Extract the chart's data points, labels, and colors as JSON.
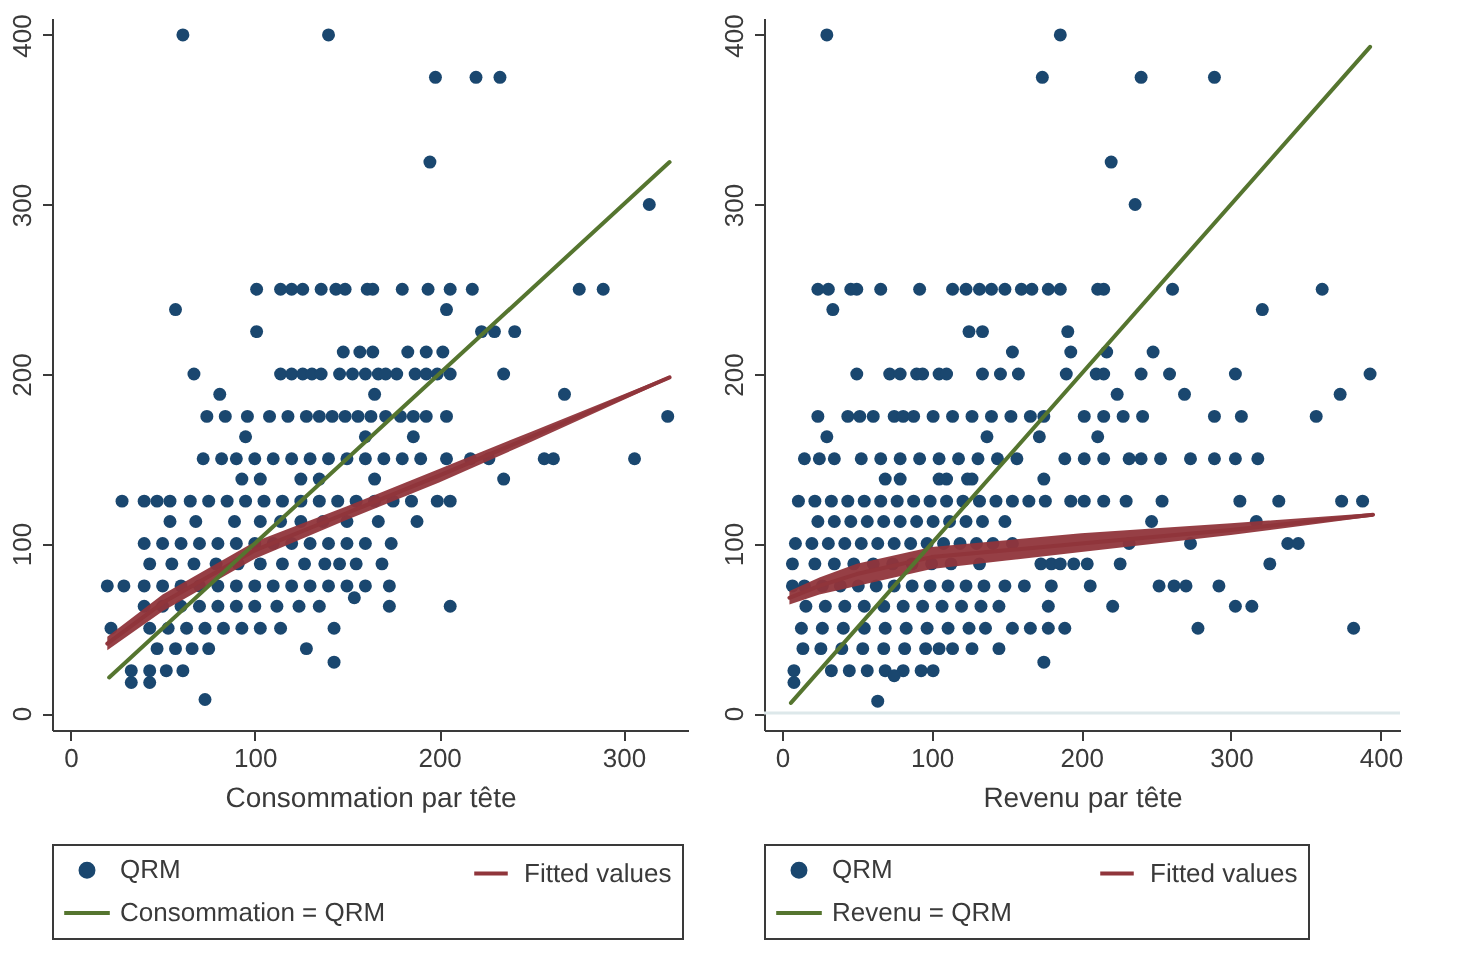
{
  "chart_data": [
    {
      "type": "scatter",
      "xlabel": "Consommation par tête",
      "xlim": [
        -10,
        335
      ],
      "ylim": [
        -10,
        410
      ],
      "xticks": [
        0,
        100,
        200,
        300
      ],
      "yticks": [
        0,
        100,
        200,
        300,
        400
      ],
      "legend": "bottom",
      "series": [
        {
          "name": "QRM",
          "marker": "circle",
          "color": "#1a476f",
          "x": [
            61,
            140,
            198,
            220,
            233,
            195,
            314,
            101,
            114,
            120,
            126,
            136,
            144,
            149,
            161,
            164,
            180,
            194,
            206,
            218,
            276,
            289,
            57,
            204,
            101,
            223,
            230,
            241,
            148,
            157,
            164,
            183,
            193,
            202,
            67,
            114,
            120,
            126,
            131,
            136,
            146,
            153,
            160,
            167,
            171,
            177,
            187,
            193,
            199,
            206,
            235,
            81,
            165,
            268,
            74,
            84,
            96,
            108,
            118,
            128,
            135,
            142,
            149,
            156,
            163,
            171,
            179,
            186,
            193,
            204,
            324,
            95,
            160,
            186,
            72,
            82,
            90,
            100,
            110,
            120,
            130,
            140,
            150,
            160,
            170,
            180,
            190,
            204,
            217,
            227,
            257,
            262,
            306,
            93,
            103,
            125,
            135,
            165,
            235,
            28,
            40,
            47,
            54,
            65,
            75,
            85,
            95,
            105,
            115,
            125,
            135,
            145,
            155,
            165,
            175,
            185,
            199,
            206,
            54,
            68,
            89,
            103,
            114,
            125,
            137,
            150,
            167,
            188,
            40,
            50,
            60,
            70,
            80,
            90,
            100,
            110,
            120,
            130,
            140,
            150,
            160,
            174,
            43,
            55,
            67,
            79,
            91,
            103,
            115,
            127,
            138,
            146,
            155,
            169,
            20,
            29,
            40,
            50,
            60,
            70,
            80,
            90,
            100,
            110,
            120,
            130,
            140,
            150,
            160,
            173,
            40,
            50,
            60,
            70,
            80,
            90,
            100,
            112,
            124,
            135,
            173,
            206,
            22,
            43,
            53,
            63,
            73,
            83,
            93,
            103,
            114,
            143,
            47,
            57,
            66,
            75,
            128,
            143,
            33,
            43,
            52,
            61,
            33,
            43,
            73,
            154
          ],
          "values": [
            400,
            400,
            375,
            375,
            375,
            325,
            300,
            250,
            250,
            250,
            250,
            250,
            250,
            250,
            250,
            250,
            250,
            250,
            250,
            250,
            250,
            250,
            238,
            238,
            225,
            225,
            225,
            225,
            213,
            213,
            213,
            213,
            213,
            213,
            200,
            200,
            200,
            200,
            200,
            200,
            200,
            200,
            200,
            200,
            200,
            200,
            200,
            200,
            200,
            200,
            200,
            188,
            188,
            188,
            175,
            175,
            175,
            175,
            175,
            175,
            175,
            175,
            175,
            175,
            175,
            175,
            175,
            175,
            175,
            175,
            175,
            163,
            163,
            163,
            150,
            150,
            150,
            150,
            150,
            150,
            150,
            150,
            150,
            150,
            150,
            150,
            150,
            150,
            150,
            150,
            150,
            150,
            150,
            138,
            138,
            138,
            138,
            138,
            138,
            125,
            125,
            125,
            125,
            125,
            125,
            125,
            125,
            125,
            125,
            125,
            125,
            125,
            125,
            125,
            125,
            125,
            125,
            125,
            113,
            113,
            113,
            113,
            113,
            113,
            113,
            113,
            113,
            113,
            100,
            100,
            100,
            100,
            100,
            100,
            100,
            100,
            100,
            100,
            100,
            100,
            100,
            100,
            88,
            88,
            88,
            88,
            88,
            88,
            88,
            88,
            88,
            88,
            88,
            88,
            75,
            75,
            75,
            75,
            75,
            75,
            75,
            75,
            75,
            75,
            75,
            75,
            75,
            75,
            75,
            75,
            63,
            63,
            63,
            63,
            63,
            63,
            63,
            63,
            63,
            63,
            63,
            63,
            50,
            50,
            50,
            50,
            50,
            50,
            50,
            50,
            50,
            50,
            38,
            38,
            38,
            38,
            38,
            30,
            25,
            25,
            25,
            25,
            18,
            18,
            8,
            68
          ]
        },
        {
          "name": "Fitted values",
          "type": "line",
          "color": "#90353b",
          "x": [
            20,
            50,
            100,
            150,
            200,
            250,
            325
          ],
          "values": [
            41,
            65,
            96,
            118,
            140,
            163,
            198
          ],
          "lower": [
            37,
            60,
            91,
            114,
            136,
            160,
            197
          ],
          "upper": [
            45,
            70,
            101,
            122,
            144,
            166,
            199
          ]
        },
        {
          "name": "Consommation = QRM",
          "type": "line",
          "color": "#55752f",
          "x": [
            21,
            325
          ],
          "values": [
            21,
            325
          ]
        }
      ]
    },
    {
      "type": "scatter",
      "xlabel": "Revenu par tête",
      "xlim": [
        -12,
        413
      ],
      "ylim": [
        -10,
        410
      ],
      "xticks": [
        0,
        100,
        200,
        300,
        400
      ],
      "yticks": [
        0,
        100,
        200,
        300,
        400
      ],
      "legend": "bottom",
      "ref_lines": [
        {
          "axis": "y",
          "value": 0,
          "color": "#dde8ea"
        }
      ],
      "series": [
        {
          "name": "QRM",
          "marker": "circle",
          "color": "#1a476f",
          "x": [
            30,
            186,
            174,
            240,
            289,
            220,
            236,
            24,
            31,
            46,
            50,
            66,
            92,
            114,
            123,
            132,
            140,
            149,
            160,
            167,
            178,
            186,
            211,
            215,
            261,
            361,
            34,
            321,
            125,
            134,
            191,
            154,
            193,
            217,
            248,
            50,
            72,
            79,
            90,
            94,
            105,
            110,
            134,
            146,
            158,
            190,
            210,
            215,
            240,
            259,
            303,
            393,
            224,
            269,
            373,
            24,
            44,
            52,
            61,
            75,
            81,
            88,
            101,
            114,
            127,
            140,
            153,
            166,
            175,
            202,
            215,
            228,
            241,
            289,
            307,
            357,
            30,
            137,
            172,
            211,
            15,
            25,
            35,
            53,
            66,
            79,
            92,
            105,
            118,
            131,
            144,
            157,
            189,
            202,
            215,
            232,
            240,
            253,
            273,
            289,
            303,
            318,
            69,
            79,
            105,
            110,
            124,
            127,
            175,
            11,
            22,
            33,
            44,
            55,
            66,
            77,
            88,
            99,
            110,
            121,
            132,
            143,
            154,
            165,
            176,
            193,
            202,
            215,
            230,
            254,
            306,
            332,
            374,
            388,
            24,
            35,
            46,
            57,
            68,
            79,
            90,
            101,
            112,
            123,
            134,
            149,
            247,
            317,
            9,
            20,
            31,
            42,
            53,
            64,
            75,
            86,
            97,
            108,
            119,
            130,
            141,
            154,
            232,
            273,
            338,
            345,
            7,
            22,
            35,
            48,
            61,
            74,
            87,
            100,
            113,
            132,
            173,
            180,
            186,
            195,
            204,
            226,
            326,
            7,
            15,
            27,
            39,
            51,
            63,
            75,
            87,
            99,
            111,
            123,
            135,
            149,
            162,
            180,
            206,
            252,
            262,
            270,
            292,
            16,
            29,
            42,
            55,
            68,
            81,
            94,
            107,
            120,
            133,
            145,
            178,
            221,
            303,
            314,
            13,
            27,
            41,
            55,
            69,
            83,
            97,
            111,
            125,
            136,
            154,
            166,
            178,
            189,
            278,
            382,
            14,
            26,
            40,
            54,
            68,
            82,
            96,
            105,
            114,
            127,
            145,
            175,
            8,
            33,
            45,
            57,
            69,
            81,
            93,
            101,
            75,
            8,
            64
          ],
          "values": [
            400,
            400,
            375,
            375,
            375,
            325,
            300,
            250,
            250,
            250,
            250,
            250,
            250,
            250,
            250,
            250,
            250,
            250,
            250,
            250,
            250,
            250,
            250,
            250,
            250,
            250,
            238,
            238,
            225,
            225,
            225,
            213,
            213,
            213,
            213,
            200,
            200,
            200,
            200,
            200,
            200,
            200,
            200,
            200,
            200,
            200,
            200,
            200,
            200,
            200,
            200,
            200,
            188,
            188,
            188,
            175,
            175,
            175,
            175,
            175,
            175,
            175,
            175,
            175,
            175,
            175,
            175,
            175,
            175,
            175,
            175,
            175,
            175,
            175,
            175,
            175,
            163,
            163,
            163,
            163,
            150,
            150,
            150,
            150,
            150,
            150,
            150,
            150,
            150,
            150,
            150,
            150,
            150,
            150,
            150,
            150,
            150,
            150,
            150,
            150,
            150,
            150,
            138,
            138,
            138,
            138,
            138,
            138,
            138,
            125,
            125,
            125,
            125,
            125,
            125,
            125,
            125,
            125,
            125,
            125,
            125,
            125,
            125,
            125,
            125,
            125,
            125,
            125,
            125,
            125,
            125,
            125,
            125,
            125,
            113,
            113,
            113,
            113,
            113,
            113,
            113,
            113,
            113,
            113,
            113,
            113,
            113,
            113,
            100,
            100,
            100,
            100,
            100,
            100,
            100,
            100,
            100,
            100,
            100,
            100,
            100,
            100,
            100,
            100,
            100,
            100,
            88,
            88,
            88,
            88,
            88,
            88,
            88,
            88,
            88,
            88,
            88,
            88,
            88,
            88,
            88,
            88,
            88,
            75,
            75,
            75,
            75,
            75,
            75,
            75,
            75,
            75,
            75,
            75,
            75,
            75,
            75,
            75,
            75,
            75,
            75,
            75,
            75,
            63,
            63,
            63,
            63,
            63,
            63,
            63,
            63,
            63,
            63,
            63,
            63,
            63,
            63,
            63,
            50,
            50,
            50,
            50,
            50,
            50,
            50,
            50,
            50,
            50,
            50,
            50,
            50,
            50,
            50,
            50,
            38,
            38,
            38,
            38,
            38,
            38,
            38,
            38,
            38,
            38,
            38,
            30,
            25,
            25,
            25,
            25,
            25,
            25,
            25,
            25,
            22,
            18,
            7
          ]
        },
        {
          "name": "Fitted values",
          "type": "line",
          "color": "#90353b",
          "x": [
            5,
            25,
            50,
            100,
            150,
            200,
            300,
            395
          ],
          "values": [
            68,
            75,
            82,
            92,
            96,
            100,
            108,
            117
          ],
          "lower": [
            64,
            70,
            75,
            85,
            90,
            95,
            105,
            116
          ],
          "upper": [
            72,
            80,
            88,
            98,
            102,
            106,
            112,
            118
          ]
        },
        {
          "name": "Revenu = QRM",
          "type": "line",
          "color": "#55752f",
          "x": [
            6,
            393
          ],
          "values": [
            6,
            393
          ]
        }
      ]
    }
  ]
}
